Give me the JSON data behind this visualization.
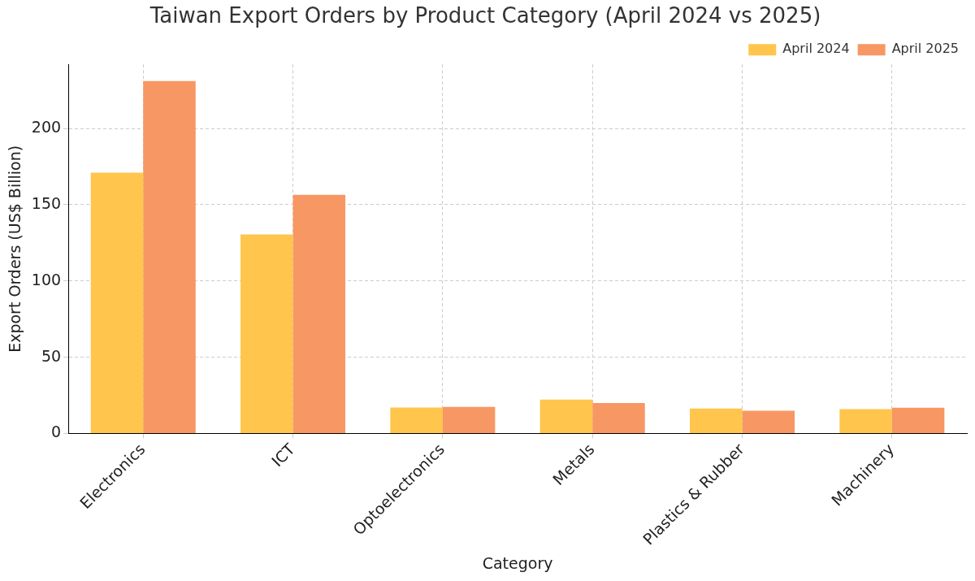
{
  "chart_data": {
    "type": "bar",
    "title": "Taiwan Export Orders by Product Category (April 2024 vs 2025)",
    "xlabel": "Category",
    "ylabel": "Export Orders (US$ Billion)",
    "categories": [
      "Electronics",
      "ICT",
      "Optoelectronics",
      "Metals",
      "Plastics & Rubber",
      "Machinery"
    ],
    "series": [
      {
        "name": "April 2024",
        "color": "#ffc54d",
        "values": [
          171,
          130.5,
          17,
          22.3,
          16.4,
          16
        ]
      },
      {
        "name": "April 2025",
        "color": "#f79764",
        "values": [
          231,
          156.5,
          17.4,
          20,
          14.9,
          16.9
        ]
      }
    ],
    "ylim": [
      0,
      242
    ],
    "yticks": [
      0,
      50,
      100,
      150,
      200
    ],
    "grid": true,
    "legend": "top right"
  }
}
